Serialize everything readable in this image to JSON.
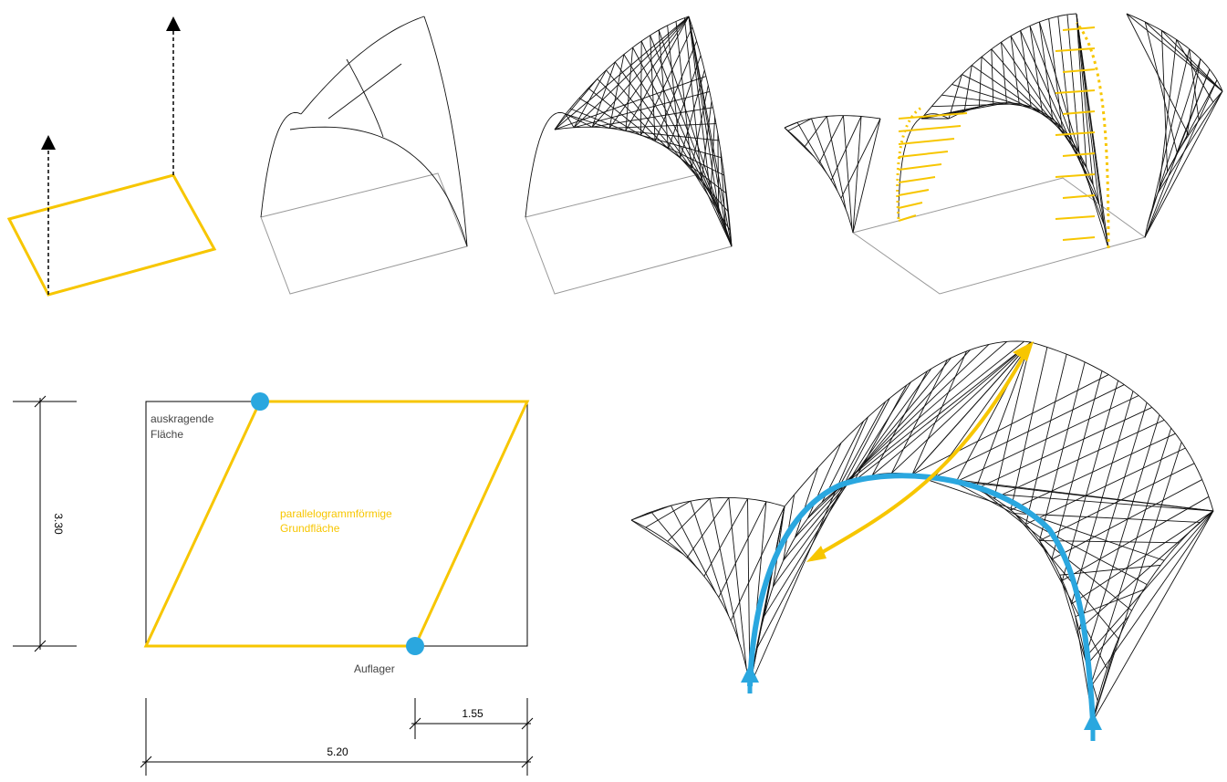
{
  "plan": {
    "label_overhang": [
      "auskragende",
      "Fläche"
    ],
    "label_base": [
      "parallelogrammförmige",
      "Grundfläche"
    ],
    "label_support": "Auflager",
    "dim_height": "3.30",
    "dim_offset": "1.55",
    "dim_width": "5.20"
  }
}
